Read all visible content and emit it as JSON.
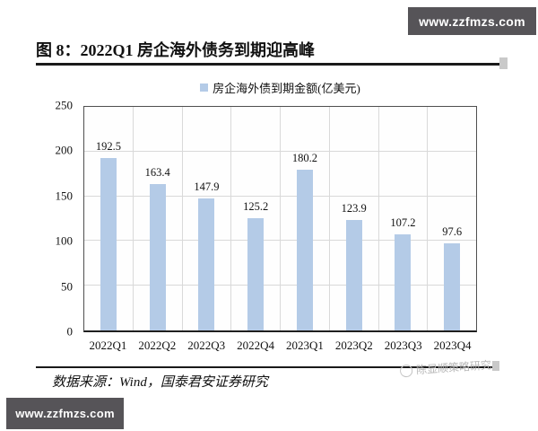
{
  "banners": {
    "top": "www.zzfmzs.com",
    "bottom": "www.zzfmzs.com"
  },
  "figure": {
    "title": "图 8：2022Q1 房企海外债务到期迎高峰",
    "source": "数据来源：Wind，国泰君安证券研究",
    "watermark": "陈显顺策略研究"
  },
  "colors": {
    "banner_bg": "#565458",
    "bar_fill": "#b4cbe7",
    "grid_line": "#d9d9d9",
    "plot_border": "#4f4f4f",
    "watermark_gray": "#b5b5b5"
  },
  "chart_data": {
    "type": "bar",
    "title": "",
    "legend": [
      "房企海外债到期金额(亿美元)"
    ],
    "legend_position": "top",
    "categories": [
      "2022Q1",
      "2022Q2",
      "2022Q3",
      "2022Q4",
      "2023Q1",
      "2023Q2",
      "2023Q3",
      "2023Q4"
    ],
    "values": [
      192.5,
      163.4,
      147.9,
      125.2,
      180.2,
      123.9,
      107.2,
      97.6
    ],
    "xlabel": "",
    "ylabel": "",
    "ylim": [
      0,
      250
    ],
    "yticks": [
      0,
      50,
      100,
      150,
      200,
      250
    ],
    "grid": true
  }
}
